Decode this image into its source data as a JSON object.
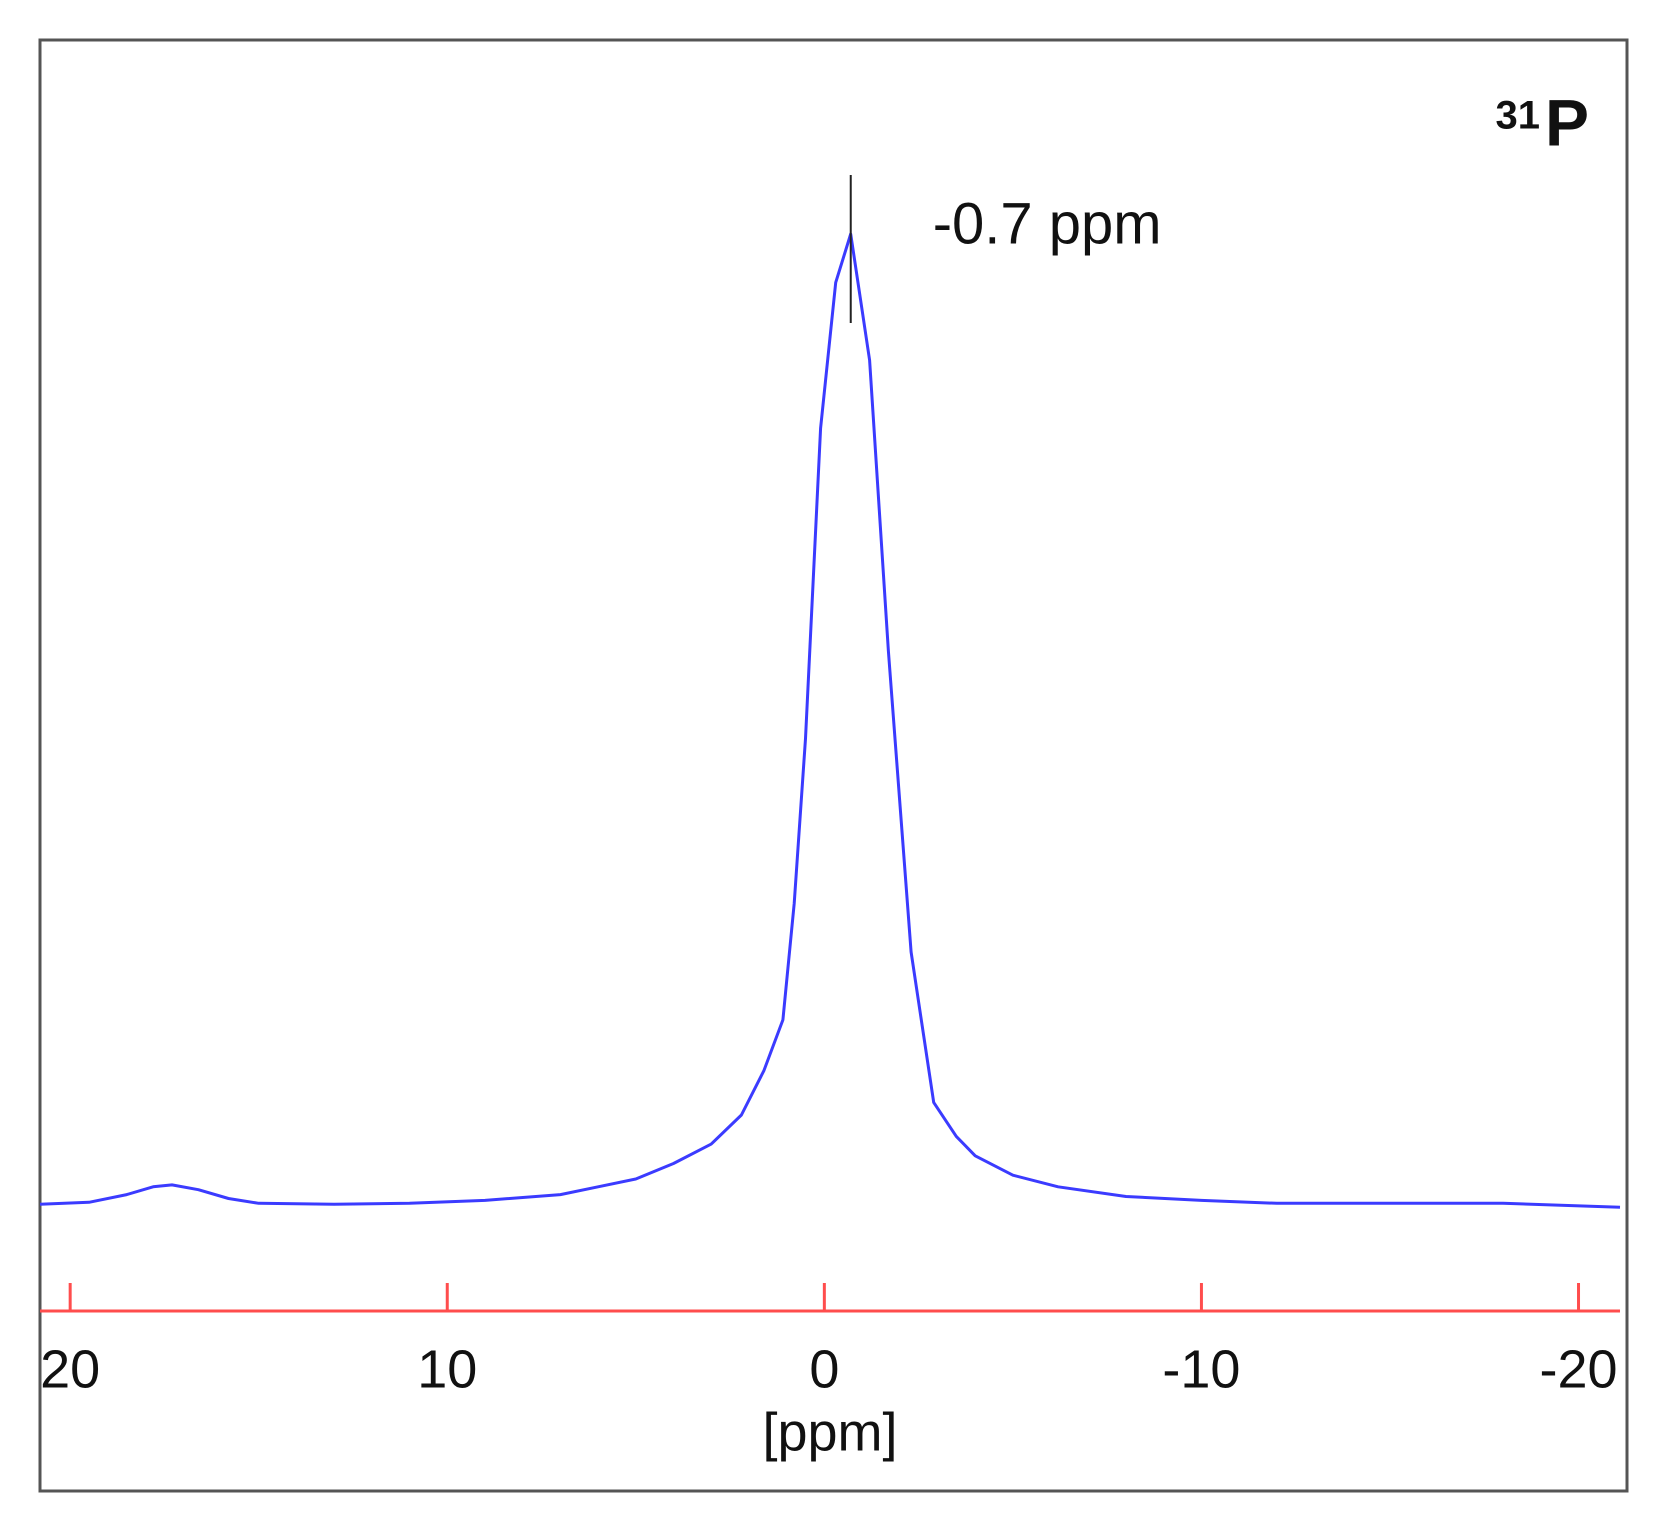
{
  "chart_data": {
    "type": "line",
    "nucleus": {
      "mass": "31",
      "symbol": "P"
    },
    "x_label": "[ppm]",
    "annotations": [
      {
        "text": "-0.7 ppm",
        "x": -0.7
      }
    ],
    "series": [
      {
        "color": "#3b3bff",
        "x": [
          20.8,
          19.5,
          18.5,
          17.8,
          17.3,
          16.6,
          15.8,
          15,
          13,
          11,
          9,
          7,
          6,
          5,
          4,
          3,
          2.2,
          1.6,
          1.1,
          0.8,
          0.5,
          0.1,
          -0.3,
          -0.7,
          -1.2,
          -1.7,
          -2.3,
          -2.9,
          -3.5,
          -4,
          -5,
          -6.2,
          -8,
          -10,
          -12,
          -15,
          -18,
          -21.1
        ],
        "values": [
          0,
          0.2,
          1,
          1.8,
          2,
          1.5,
          0.6,
          0.1,
          0,
          0.1,
          0.4,
          1,
          1.8,
          2.6,
          4.2,
          6.2,
          9.2,
          13.8,
          19,
          31,
          48,
          80,
          95,
          100,
          87,
          57,
          26,
          10.5,
          7,
          5,
          3,
          1.8,
          0.8,
          0.4,
          0.1,
          0.1,
          0.1,
          -0.3
        ]
      }
    ],
    "xlim": [
      20.8,
      -21.1
    ],
    "ylim": [
      -11,
      120
    ],
    "xticks": [
      20,
      10,
      0,
      -10,
      -20
    ],
    "axis_color": "#ff4d4d"
  }
}
